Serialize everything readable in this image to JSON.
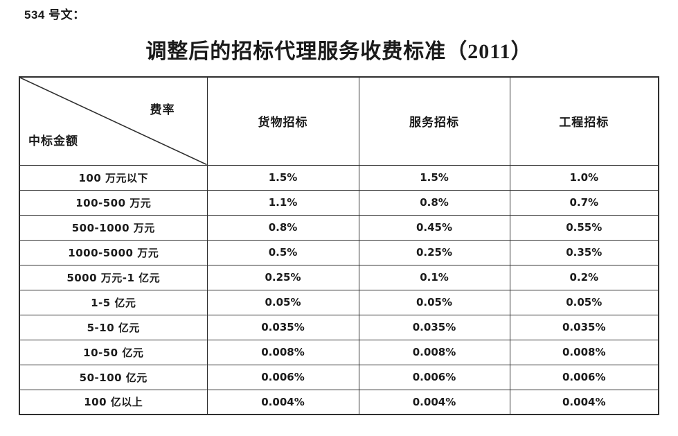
{
  "doc_label": "534 号文：",
  "title": "调整后的招标代理服务收费标准（2011）",
  "table": {
    "corner": {
      "top_right": "费率",
      "bottom_left": "中标金额"
    },
    "columns": [
      "货物招标",
      "服务招标",
      "工程招标"
    ],
    "rows": [
      {
        "amount": "100 万元以下",
        "rates": [
          "1.5%",
          "1.5%",
          "1.0%"
        ]
      },
      {
        "amount": "100-500 万元",
        "rates": [
          "1.1%",
          "0.8%",
          "0.7%"
        ]
      },
      {
        "amount": "500-1000 万元",
        "rates": [
          "0.8%",
          "0.45%",
          "0.55%"
        ]
      },
      {
        "amount": "1000-5000 万元",
        "rates": [
          "0.5%",
          "0.25%",
          "0.35%"
        ]
      },
      {
        "amount": "5000 万元-1 亿元",
        "rates": [
          "0.25%",
          "0.1%",
          "0.2%"
        ]
      },
      {
        "amount": "1-5 亿元",
        "rates": [
          "0.05%",
          "0.05%",
          "0.05%"
        ]
      },
      {
        "amount": "5-10 亿元",
        "rates": [
          "0.035%",
          "0.035%",
          "0.035%"
        ]
      },
      {
        "amount": "10-50 亿元",
        "rates": [
          "0.008%",
          "0.008%",
          "0.008%"
        ]
      },
      {
        "amount": "50-100 亿元",
        "rates": [
          "0.006%",
          "0.006%",
          "0.006%"
        ]
      },
      {
        "amount": "100 亿以上",
        "rates": [
          "0.004%",
          "0.004%",
          "0.004%"
        ]
      }
    ]
  },
  "colors": {
    "text": "#1a1a1a",
    "border": "#2f2f2f",
    "background": "#ffffff"
  }
}
